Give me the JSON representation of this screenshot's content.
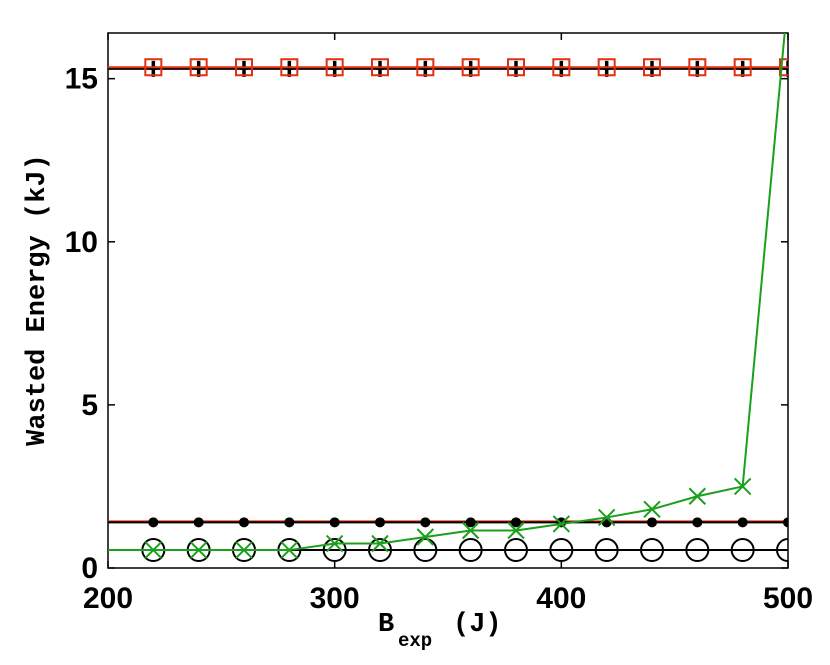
{
  "chart_data": {
    "type": "line",
    "title": "",
    "xlabel": "B",
    "xlabel_subscript": "exp",
    "xlabel_unit": "(J)",
    "ylabel": "Wasted Energy (kJ)",
    "xlim": [
      200,
      500
    ],
    "ylim": [
      0,
      16.4
    ],
    "xticks": [
      "200",
      "300",
      "400",
      "500"
    ],
    "yticks": [
      "0",
      "5",
      "10",
      "15"
    ],
    "grid": false,
    "series": [
      {
        "color": "#000000",
        "marker": "plus",
        "x": [
          200,
          220,
          240,
          260,
          280,
          300,
          320,
          340,
          360,
          380,
          400,
          420,
          440,
          460,
          480,
          500
        ],
        "values": [
          15.3,
          15.3,
          15.3,
          15.3,
          15.3,
          15.3,
          15.3,
          15.3,
          15.3,
          15.3,
          15.3,
          15.3,
          15.3,
          15.3,
          15.3,
          15.3
        ]
      },
      {
        "color": "#e03010",
        "marker": "square",
        "x": [
          200,
          220,
          240,
          260,
          280,
          300,
          320,
          340,
          360,
          380,
          400,
          420,
          440,
          460,
          480,
          500
        ],
        "values": [
          15.35,
          15.35,
          15.35,
          15.35,
          15.35,
          15.35,
          15.35,
          15.35,
          15.35,
          15.35,
          15.35,
          15.35,
          15.35,
          15.35,
          15.35,
          15.35
        ]
      },
      {
        "color": "#e03010",
        "marker": "none",
        "x": [
          200,
          500
        ],
        "values": [
          1.43,
          1.43
        ]
      },
      {
        "color": "#000000",
        "marker": "dot",
        "x": [
          200,
          220,
          240,
          260,
          280,
          300,
          320,
          340,
          360,
          380,
          400,
          420,
          440,
          460,
          480,
          500
        ],
        "values": [
          1.4,
          1.4,
          1.4,
          1.4,
          1.4,
          1.4,
          1.4,
          1.4,
          1.4,
          1.4,
          1.4,
          1.4,
          1.4,
          1.4,
          1.4,
          1.4
        ]
      },
      {
        "color": "#000000",
        "marker": "circle",
        "x": [
          200,
          220,
          240,
          260,
          280,
          300,
          320,
          340,
          360,
          380,
          400,
          420,
          440,
          460,
          480,
          500
        ],
        "values": [
          0.55,
          0.55,
          0.55,
          0.55,
          0.55,
          0.55,
          0.55,
          0.55,
          0.55,
          0.55,
          0.55,
          0.55,
          0.55,
          0.55,
          0.55,
          0.55
        ]
      },
      {
        "color": "#1aa01a",
        "marker": "x",
        "x": [
          200,
          220,
          240,
          260,
          280,
          300,
          320,
          340,
          360,
          380,
          400,
          420,
          440,
          460,
          480,
          500
        ],
        "values": [
          0.55,
          0.55,
          0.55,
          0.55,
          0.55,
          0.75,
          0.75,
          0.95,
          1.15,
          1.15,
          1.35,
          1.55,
          1.8,
          2.2,
          2.5,
          17.5
        ]
      }
    ]
  }
}
